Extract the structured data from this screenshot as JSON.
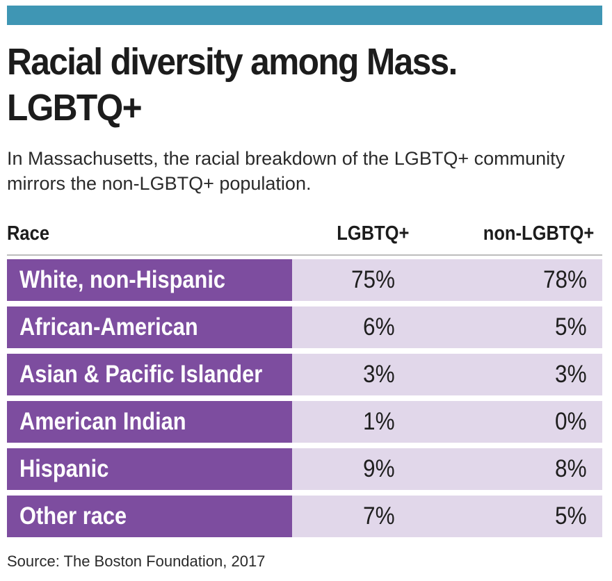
{
  "header_bar_color": "#3f96b4",
  "label_color": "#7d4d9f",
  "value_bg_color": "#e1d7ea",
  "chart_data": {
    "type": "table",
    "title": "Racial diversity among Mass. LGBTQ+",
    "subtitle": "In Massachusetts, the racial breakdown of the LGBTQ+ community mirrors the non-LGBTQ+ population.",
    "columns": [
      "Race",
      "LGBTQ+",
      "non-LGBTQ+"
    ],
    "rows": [
      {
        "race": "White, non-Hispanic",
        "lgbtq": "75%",
        "non_lgbtq": "78%"
      },
      {
        "race": "African-American",
        "lgbtq": "6%",
        "non_lgbtq": "5%"
      },
      {
        "race": "Asian & Pacific Islander",
        "lgbtq": "3%",
        "non_lgbtq": "3%"
      },
      {
        "race": "American Indian",
        "lgbtq": "1%",
        "non_lgbtq": "0%"
      },
      {
        "race": "Hispanic",
        "lgbtq": "9%",
        "non_lgbtq": "8%"
      },
      {
        "race": "Other race",
        "lgbtq": "7%",
        "non_lgbtq": "5%"
      }
    ],
    "source": "Source: The Boston Foundation, 2017"
  }
}
